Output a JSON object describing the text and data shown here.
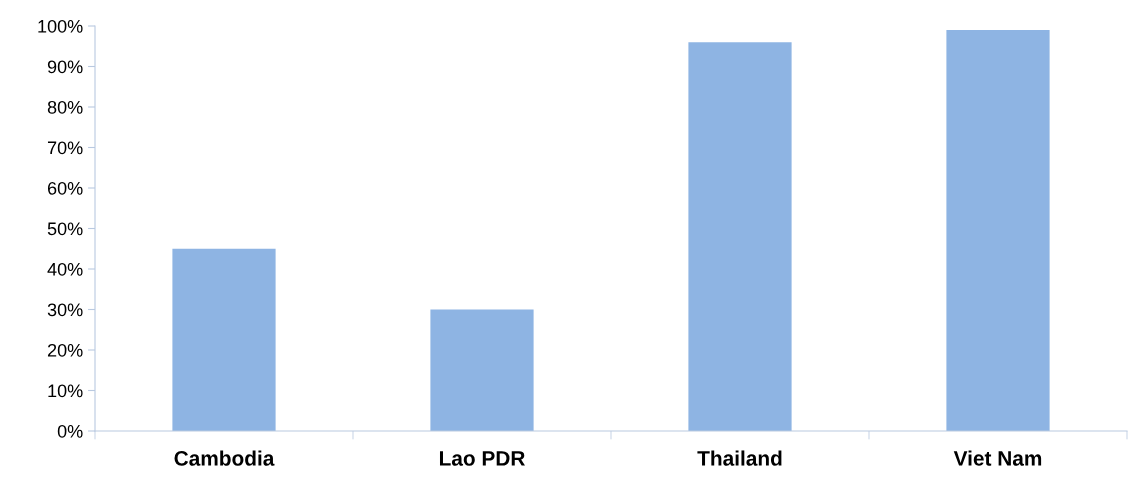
{
  "chart_data": {
    "type": "bar",
    "categories": [
      "Cambodia",
      "Lao PDR",
      "Thailand",
      "Viet Nam"
    ],
    "values": [
      45,
      30,
      96,
      99
    ],
    "color": "#8eb4e3",
    "ylim": [
      0,
      100
    ],
    "yticks": [
      {
        "value": 0,
        "label": "0%"
      },
      {
        "value": 10,
        "label": "10%"
      },
      {
        "value": 20,
        "label": "20%"
      },
      {
        "value": 30,
        "label": "30%"
      },
      {
        "value": 40,
        "label": "40%"
      },
      {
        "value": 50,
        "label": "50%"
      },
      {
        "value": 60,
        "label": "60%"
      },
      {
        "value": 70,
        "label": "70%"
      },
      {
        "value": 80,
        "label": "80%"
      },
      {
        "value": 90,
        "label": "90%"
      },
      {
        "value": 100,
        "label": "100%"
      }
    ],
    "grid": false,
    "legend": false
  }
}
